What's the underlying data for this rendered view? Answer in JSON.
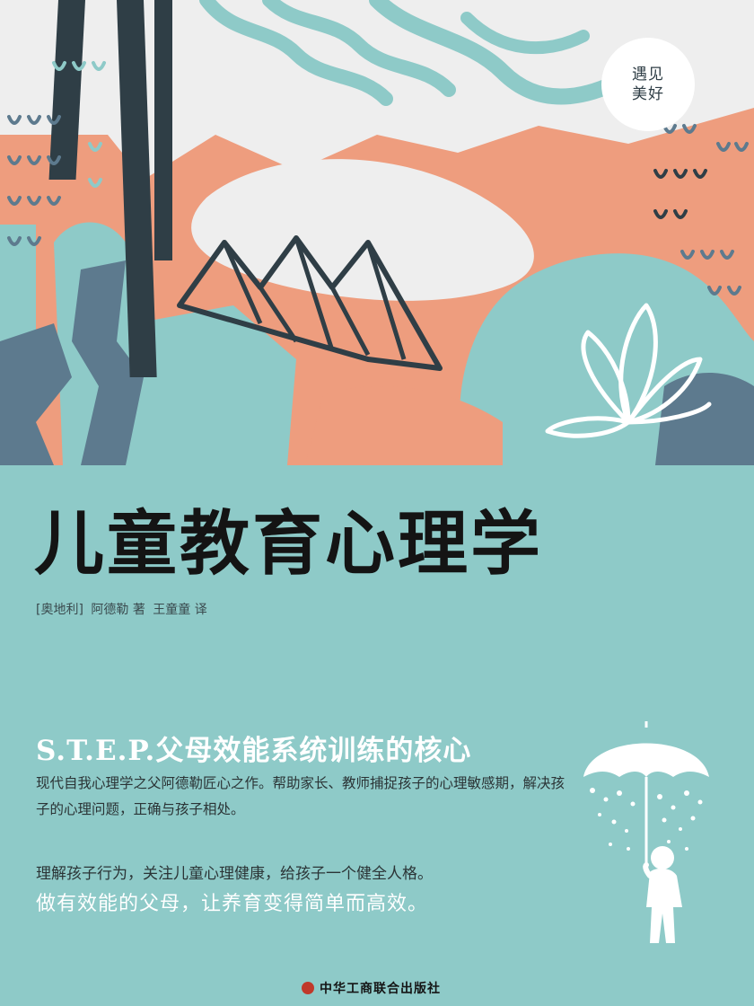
{
  "badge": {
    "line1": "遇见",
    "line2": "美好"
  },
  "book": {
    "title": "儿童教育心理学",
    "author_country": "[奥地利]",
    "author": "阿德勒 著",
    "translator": "王童童 译",
    "subtitle": "S.T.E.P.父母效能系统训练的核心",
    "description": "现代自我心理学之父阿德勒匠心之作。帮助家长、教师捕捉孩子的心理敏感期，解决孩子的心理问题，正确与孩子相处。",
    "tagline1": "理解孩子行为，关注儿童心理健康，给孩子一个健全人格。",
    "tagline2": "做有效能的父母，让养育变得简单而高效。",
    "publisher": "中华工商联合出版社"
  },
  "colors": {
    "teal": "#8ecac8",
    "salmon": "#ee9d7e",
    "dark_slate": "#2f3e46",
    "slate_blue": "#5d7a8e",
    "white": "#ffffff"
  },
  "icons": [
    "cover-illustration",
    "umbrella-child-icon",
    "publisher-logo-icon"
  ]
}
